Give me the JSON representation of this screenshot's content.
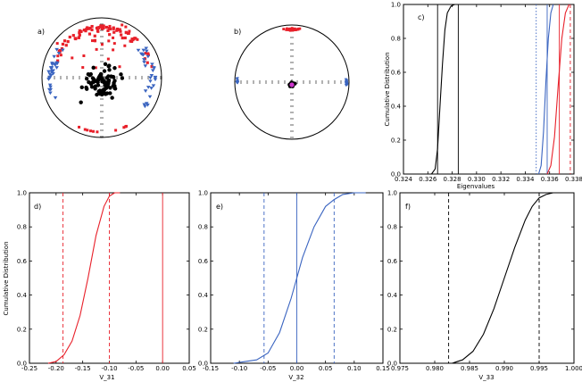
{
  "panels": [
    {
      "id": "a",
      "label": "a)",
      "type": "stereonet"
    },
    {
      "id": "b",
      "label": "b)",
      "type": "stereonet"
    },
    {
      "id": "c",
      "label": "c)",
      "type": "cdf"
    },
    {
      "id": "d",
      "label": "d)",
      "type": "cdf"
    },
    {
      "id": "e",
      "label": "e)",
      "type": "cdf"
    },
    {
      "id": "f",
      "label": "f)",
      "type": "cdf"
    }
  ],
  "colors": {
    "red": "#e8202a",
    "blue": "#3a64c0",
    "black": "#000000",
    "magenta": "#cc33cc"
  },
  "chart_data": [
    {
      "panel": "a",
      "type": "scatter",
      "projection": "equal-area stereonet",
      "series": [
        {
          "color": "#e8202a",
          "marker": "square",
          "region": "near the north edge and scattered across the upper half"
        },
        {
          "color": "#3a64c0",
          "marker": "triangle-down",
          "region": "around the east and west edges"
        },
        {
          "color": "#000000",
          "marker": "circle",
          "region": "clustered near the centre"
        }
      ]
    },
    {
      "panel": "b",
      "type": "scatter",
      "projection": "equal-area stereonet",
      "series": [
        {
          "color": "#e8202a",
          "marker": "square",
          "region": "tight cluster at the north pole"
        },
        {
          "color": "#3a64c0",
          "marker": "triangle-down",
          "region": "tight clusters at east and west edges"
        },
        {
          "color": "#000000",
          "marker": "circle",
          "region": "tight cluster at the centre"
        },
        {
          "color": "#cc33cc",
          "marker": "circle",
          "region": "mean direction at the centre"
        }
      ]
    },
    {
      "panel": "c",
      "type": "line",
      "xlabel": "Eigenvalues",
      "ylabel": "Cumulative Distribution",
      "xlim": [
        0.324,
        0.338
      ],
      "ylim": [
        0.0,
        1.0
      ],
      "xticks": [
        "0.324",
        "0.326",
        "0.328",
        "0.330",
        "0.332",
        "0.334",
        "0.336",
        "0.338"
      ],
      "yticks": [
        "0.0",
        "0.2",
        "0.4",
        "0.6",
        "0.8",
        "1.0"
      ],
      "series": [
        {
          "color": "#000000",
          "x": [
            0.3263,
            0.3266,
            0.3268,
            0.327,
            0.3272,
            0.3274,
            0.3276,
            0.3279,
            0.3282
          ],
          "y": [
            0.0,
            0.03,
            0.15,
            0.4,
            0.65,
            0.85,
            0.95,
            0.99,
            1.0
          ]
        },
        {
          "color": "#3a64c0",
          "x": [
            0.3351,
            0.3353,
            0.3355,
            0.3357,
            0.3359,
            0.3361,
            0.3363
          ],
          "y": [
            0.0,
            0.05,
            0.25,
            0.55,
            0.8,
            0.95,
            1.0
          ]
        },
        {
          "color": "#e8202a",
          "x": [
            0.3358,
            0.3361,
            0.3364,
            0.3367,
            0.337,
            0.3373,
            0.3376
          ],
          "y": [
            0.0,
            0.05,
            0.22,
            0.52,
            0.8,
            0.95,
            1.0
          ]
        }
      ],
      "vlines": [
        {
          "x": 0.3268,
          "color": "#000000",
          "style": "solid"
        },
        {
          "x": 0.3285,
          "color": "#000000",
          "style": "solid"
        },
        {
          "x": 0.3349,
          "color": "#3a64c0",
          "style": "dotted"
        },
        {
          "x": 0.3358,
          "color": "#3a64c0",
          "style": "solid"
        },
        {
          "x": 0.3368,
          "color": "#e8202a",
          "style": "solid"
        },
        {
          "x": 0.3377,
          "color": "#e8202a",
          "style": "dashed"
        }
      ]
    },
    {
      "panel": "d",
      "type": "line",
      "xlabel": "V_31",
      "ylabel": "Cumulative Distribution",
      "xlim": [
        -0.25,
        0.05
      ],
      "ylim": [
        0.0,
        1.0
      ],
      "xticks": [
        "-0.25",
        "-0.20",
        "-0.15",
        "-0.10",
        "-0.05",
        "0.00",
        "0.05"
      ],
      "yticks": [
        "0.0",
        "0.2",
        "0.4",
        "0.6",
        "0.8",
        "1.0"
      ],
      "series": [
        {
          "color": "#e8202a",
          "x": [
            -0.215,
            -0.2,
            -0.185,
            -0.17,
            -0.155,
            -0.14,
            -0.125,
            -0.11,
            -0.1,
            -0.09,
            -0.08
          ],
          "y": [
            0.0,
            0.01,
            0.05,
            0.13,
            0.28,
            0.5,
            0.75,
            0.92,
            0.98,
            1.0,
            1.0
          ]
        }
      ],
      "vlines": [
        {
          "x": -0.187,
          "color": "#e8202a",
          "style": "dashed"
        },
        {
          "x": -0.1,
          "color": "#e8202a",
          "style": "dashed"
        },
        {
          "x": 0.0,
          "color": "#e8202a",
          "style": "solid"
        }
      ]
    },
    {
      "panel": "e",
      "type": "line",
      "xlabel": "V_32",
      "ylabel": "",
      "xlim": [
        -0.15,
        0.15
      ],
      "ylim": [
        0.0,
        1.0
      ],
      "xticks": [
        "-0.15",
        "-0.10",
        "-0.05",
        "0.00",
        "0.05",
        "0.10",
        "0.15"
      ],
      "yticks": [
        "0.0",
        "0.2",
        "0.4",
        "0.6",
        "0.8",
        "1.0"
      ],
      "series": [
        {
          "color": "#3a64c0",
          "x": [
            -0.11,
            -0.09,
            -0.07,
            -0.05,
            -0.03,
            -0.01,
            0.0,
            0.01,
            0.03,
            0.05,
            0.065,
            0.08,
            0.1,
            0.12
          ],
          "y": [
            0.0,
            0.01,
            0.02,
            0.06,
            0.18,
            0.38,
            0.5,
            0.62,
            0.8,
            0.92,
            0.96,
            0.99,
            1.0,
            1.0
          ]
        }
      ],
      "vlines": [
        {
          "x": -0.057,
          "color": "#3a64c0",
          "style": "dashed"
        },
        {
          "x": 0.0,
          "color": "#3a64c0",
          "style": "solid"
        },
        {
          "x": 0.065,
          "color": "#3a64c0",
          "style": "dashed"
        }
      ]
    },
    {
      "panel": "f",
      "type": "line",
      "xlabel": "V_33",
      "ylabel": "",
      "xlim": [
        0.975,
        1.0
      ],
      "ylim": [
        0.0,
        1.0
      ],
      "xticks": [
        "0.975",
        "0.980",
        "0.985",
        "0.990",
        "0.995",
        "1.000"
      ],
      "yticks": [
        "0.0",
        "0.2",
        "0.4",
        "0.6",
        "0.8",
        "1.0"
      ],
      "series": [
        {
          "color": "#000000",
          "x": [
            0.9825,
            0.984,
            0.9855,
            0.987,
            0.9885,
            0.99,
            0.9915,
            0.993,
            0.994,
            0.995,
            0.996,
            0.997
          ],
          "y": [
            0.0,
            0.02,
            0.07,
            0.17,
            0.32,
            0.5,
            0.68,
            0.84,
            0.92,
            0.97,
            0.99,
            1.0
          ]
        }
      ],
      "vlines": [
        {
          "x": 0.982,
          "color": "#000000",
          "style": "dashed"
        },
        {
          "x": 0.995,
          "color": "#000000",
          "style": "dashed"
        }
      ]
    }
  ]
}
